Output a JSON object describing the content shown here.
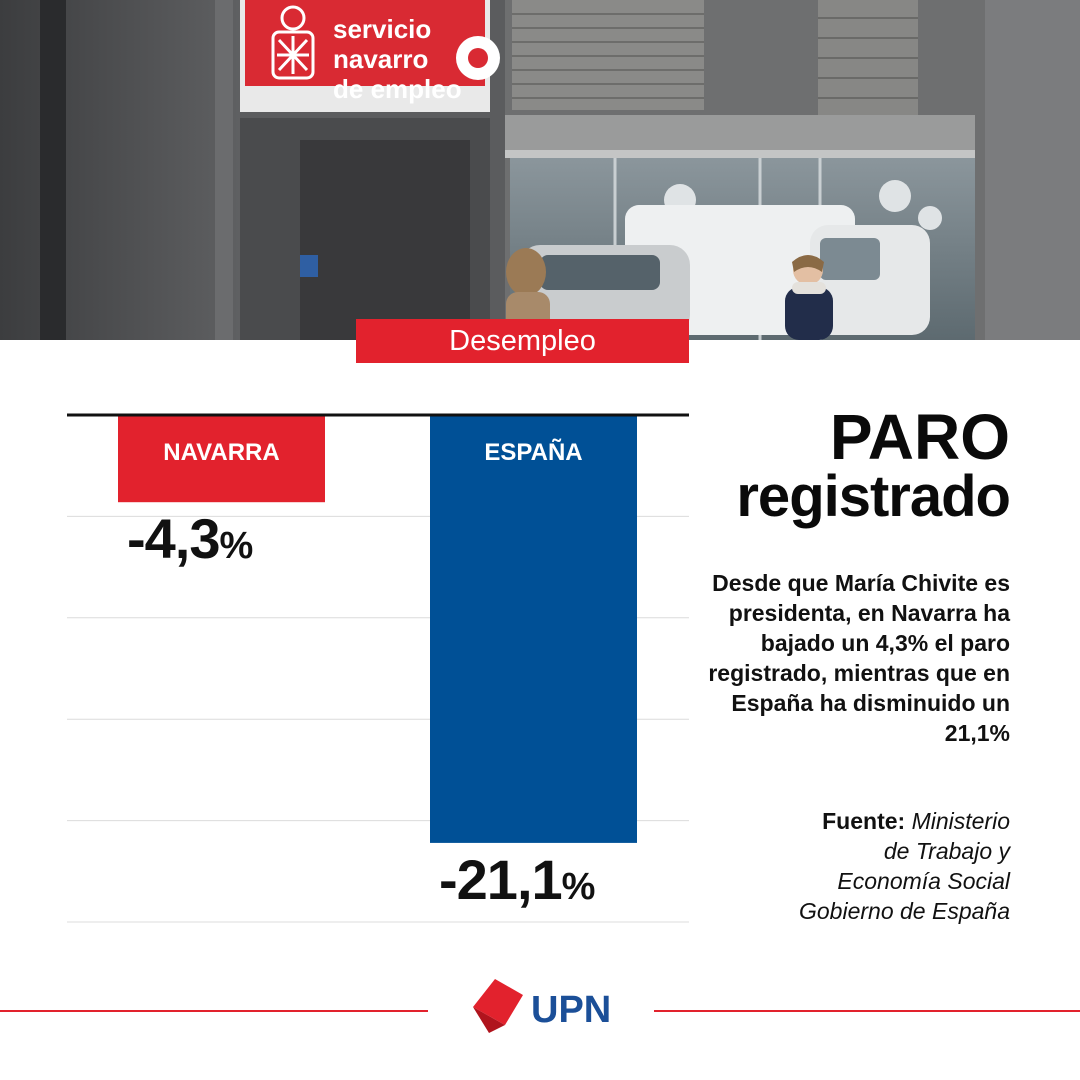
{
  "photo": {
    "sign_lines": [
      "servicio",
      "navarro",
      "de empleo"
    ]
  },
  "tag": "Desempleo",
  "headline": {
    "line1": "PARO",
    "line2": "registrado"
  },
  "description": "Desde que María Chivite es presidenta, en Navarra ha bajado un 4,3% el paro registrado, mientras que en España ha disminuido un 21,1%",
  "source": {
    "label": "Fuente:",
    "lines": [
      "Ministerio",
      "de Trabajo y",
      "Economía Social",
      "Gobierno de España"
    ]
  },
  "chart_data": {
    "type": "bar",
    "categories": [
      "NAVARRA",
      "ESPAÑA"
    ],
    "values": [
      -4.3,
      -21.1
    ],
    "value_labels": [
      {
        "num": "-4,3",
        "unit": "%"
      },
      {
        "num": "-21,1",
        "unit": "%"
      }
    ],
    "ylim": [
      -25,
      0
    ],
    "grid": true,
    "colors": [
      "#e2222d",
      "#005096"
    ]
  },
  "brand": {
    "name": "UPN",
    "color": "#1b4f98",
    "accent": "#e2222d"
  }
}
